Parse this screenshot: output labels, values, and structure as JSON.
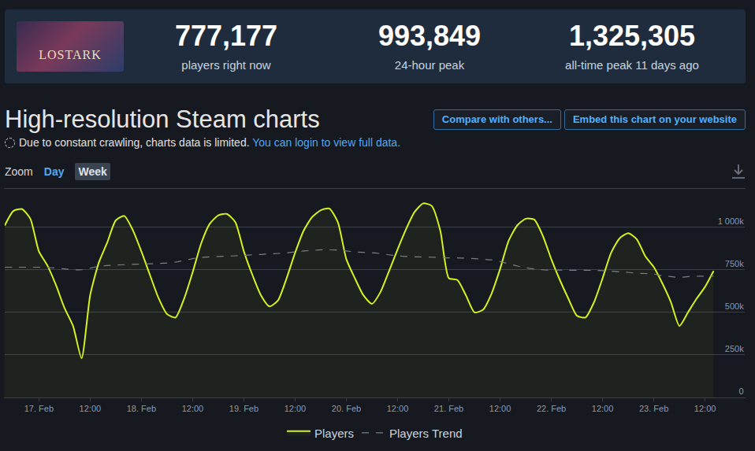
{
  "page": {
    "header": {
      "logo_text": "LOSTARK",
      "stats": [
        {
          "value": "777,177",
          "label": "players right now"
        },
        {
          "value": "993,849",
          "label": "24-hour peak"
        },
        {
          "value": "1,325,305",
          "label": "all-time peak 11 days ago"
        }
      ]
    },
    "title": "High-resolution Steam charts",
    "notice": "Due to constant crawling, charts data is limited.",
    "notice_link": "You can login to view full data.",
    "buttons": [
      "Compare with others...",
      "Embed this chart on your website"
    ],
    "zoom": {
      "label": "Zoom",
      "options": [
        "Day",
        "Week"
      ],
      "selected": "Week"
    }
  },
  "chart_data": {
    "type": "line",
    "categories": [
      null,
      null,
      null,
      null,
      "17. Feb",
      null,
      null,
      null,
      null,
      null,
      "12:00",
      null,
      null,
      null,
      null,
      null,
      "18. Feb",
      null,
      null,
      null,
      null,
      null,
      "12:00",
      null,
      null,
      null,
      null,
      null,
      "19. Feb",
      null,
      null,
      null,
      null,
      null,
      "12:00",
      null,
      null,
      null,
      null,
      null,
      "20. Feb",
      null,
      null,
      null,
      null,
      null,
      "12:00",
      null,
      null,
      null,
      null,
      null,
      "21. Feb",
      null,
      null,
      null,
      null,
      null,
      "12:00",
      null,
      null,
      null,
      null,
      null,
      "22. Feb",
      null,
      null,
      null,
      null,
      null,
      "12:00",
      null,
      null,
      null,
      null,
      null,
      "23. Feb",
      null,
      null,
      null,
      null,
      null,
      "12:00",
      null
    ],
    "series": [
      {
        "name": "Players",
        "color": "#d4f21e",
        "values": [
          1010000,
          1095000,
          1107000,
          1050000,
          858000,
          775000,
          660000,
          525000,
          420000,
          230000,
          600000,
          790000,
          910000,
          1040000,
          1066000,
          983000,
          858000,
          720000,
          585000,
          490000,
          470000,
          580000,
          735000,
          905000,
          1020000,
          1070000,
          1078000,
          1030000,
          858000,
          720000,
          600000,
          535000,
          570000,
          700000,
          850000,
          980000,
          1060000,
          1100000,
          1110000,
          1030000,
          812000,
          700000,
          600000,
          550000,
          620000,
          743000,
          870000,
          990000,
          1090000,
          1140000,
          1125000,
          980000,
          700000,
          690000,
          600000,
          500000,
          515000,
          610000,
          755000,
          920000,
          1010000,
          1050000,
          1045000,
          950000,
          812000,
          690000,
          580000,
          480000,
          470000,
          560000,
          700000,
          850000,
          935000,
          965000,
          930000,
          830000,
          766000,
          670000,
          560000,
          420000,
          500000,
          580000,
          650000,
          743000
        ]
      },
      {
        "name": "Players Trend",
        "color": "#7d8187",
        "line_style": "dashed",
        "values": [
          765000,
          765000,
          765000,
          765000,
          765000,
          763000,
          760000,
          755000,
          750000,
          750000,
          760000,
          770000,
          775000,
          778000,
          780000,
          782000,
          784000,
          785000,
          787000,
          790000,
          795000,
          805000,
          815000,
          822000,
          826000,
          828000,
          830000,
          832000,
          835000,
          838000,
          840000,
          843000,
          846000,
          850000,
          855000,
          860000,
          864000,
          867000,
          868000,
          866000,
          860000,
          855000,
          852000,
          850000,
          845000,
          838000,
          832000,
          828000,
          826000,
          825000,
          824000,
          822000,
          820000,
          820000,
          818000,
          815000,
          812000,
          808000,
          798000,
          785000,
          772000,
          762000,
          755000,
          750000,
          748000,
          748000,
          747000,
          747000,
          747000,
          746000,
          745000,
          742000,
          738000,
          735000,
          730000,
          728000,
          725000,
          715000,
          710000,
          705000,
          710000,
          712000,
          712000,
          712000
        ]
      }
    ],
    "ylim": [
      0,
      1225000
    ],
    "yticks": [
      0,
      {
        "value": 250000,
        "label": "250k"
      },
      {
        "value": 500000,
        "label": "500k"
      },
      {
        "value": 750000,
        "label": "750k"
      },
      {
        "value": 1000000,
        "label": "1 000k"
      }
    ],
    "grid": true,
    "legend": "bottom"
  }
}
